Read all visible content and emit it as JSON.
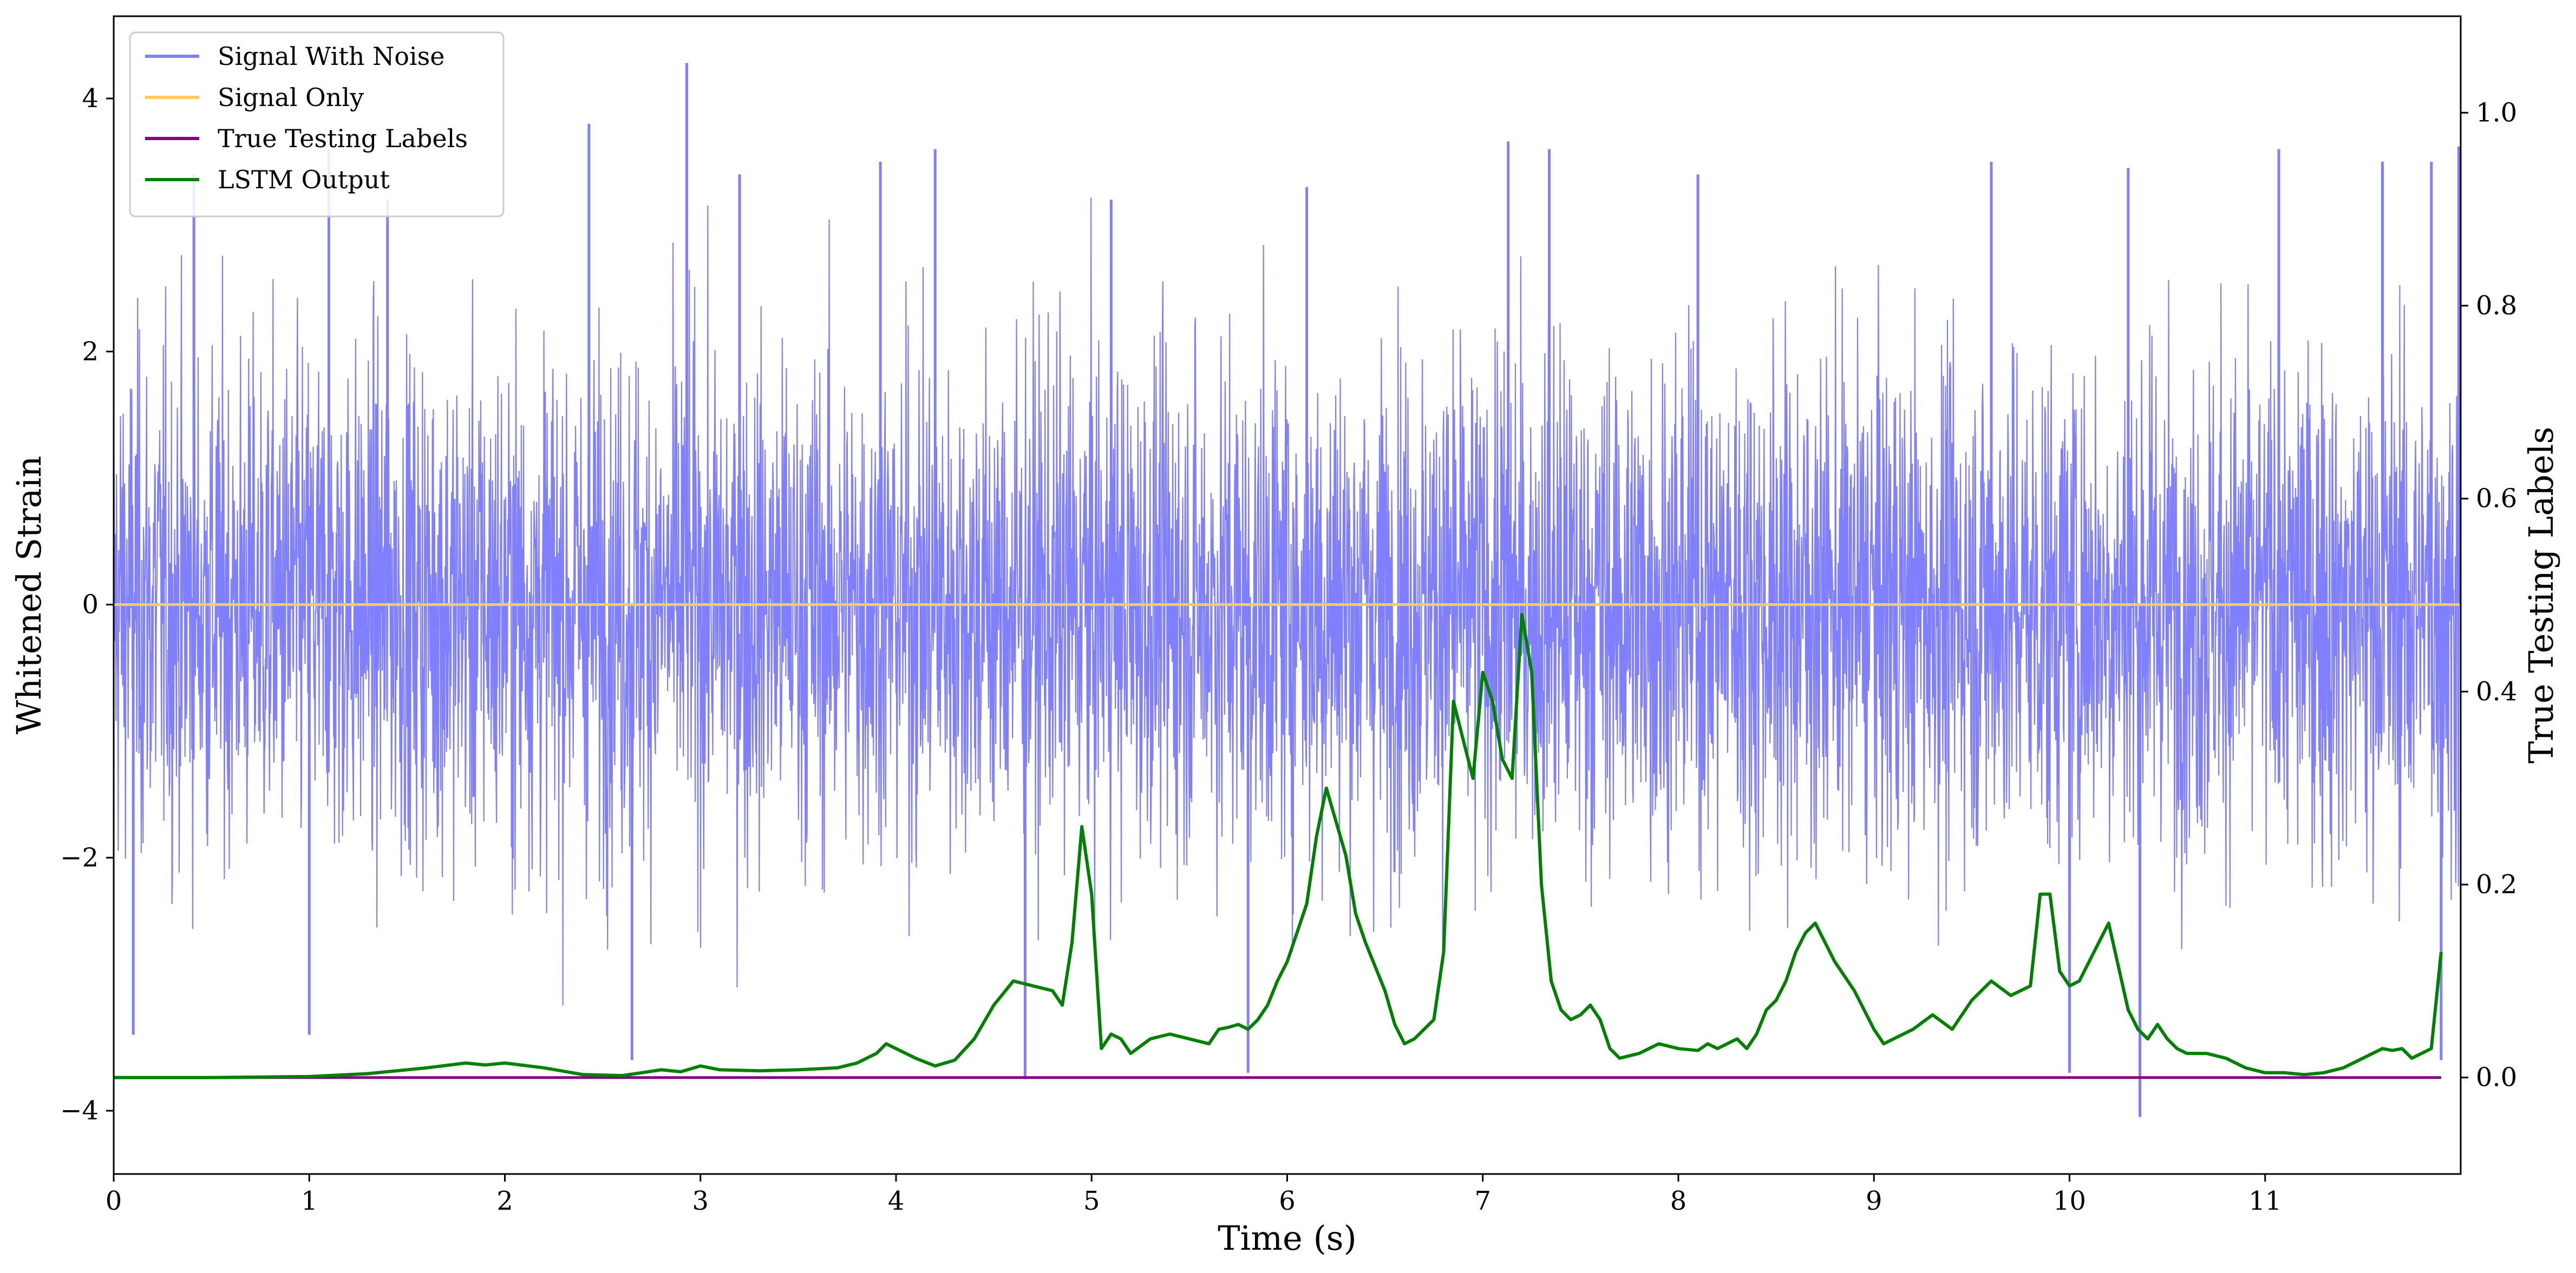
{
  "chart_data": {
    "type": "line",
    "title": "",
    "xlabel": "Time (s)",
    "ylabel_left": "Whitened Strain",
    "ylabel_right": "True Testing Labels",
    "xlim": [
      0,
      12
    ],
    "ylim_left": [
      -4.5,
      4.65
    ],
    "ylim_right": [
      -0.1,
      1.1
    ],
    "x_ticks": [
      0,
      1,
      2,
      3,
      4,
      5,
      6,
      7,
      8,
      9,
      10,
      11
    ],
    "x_tick_labels": [
      "0",
      "1",
      "2",
      "3",
      "4",
      "5",
      "6",
      "7",
      "8",
      "9",
      "10",
      "11"
    ],
    "y_left_ticks": [
      -4,
      -2,
      0,
      2,
      4
    ],
    "y_left_tick_labels": [
      "−4",
      "−2",
      "0",
      "2",
      "4"
    ],
    "y_right_ticks": [
      0.0,
      0.2,
      0.4,
      0.6,
      0.8,
      1.0
    ],
    "y_right_tick_labels": [
      "0.0",
      "0.2",
      "0.4",
      "0.6",
      "0.8",
      "1.0"
    ],
    "grid": false,
    "legend_position": "upper-left",
    "legend": [
      "Signal With Noise",
      "Signal Only",
      "True Testing Labels",
      "LSTM Output"
    ],
    "series": [
      {
        "name": "Signal With Noise",
        "axis": "left",
        "color": "#7f7fff",
        "description_values": "dense noise band, typical range -2.5 to 2.5, spikes up to 4.3 and down to -4.05",
        "noise_envelope": {
          "typical_min": -2.5,
          "typical_max": 2.5,
          "peak_max": 4.3,
          "peak_min": -4.05
        },
        "spikes": [
          {
            "x": 0.41,
            "y": 3.4
          },
          {
            "x": 1.1,
            "y": 3.6
          },
          {
            "x": 1.4,
            "y": 3.2
          },
          {
            "x": 2.43,
            "y": 3.8
          },
          {
            "x": 2.93,
            "y": 4.28
          },
          {
            "x": 3.2,
            "y": 3.4
          },
          {
            "x": 3.92,
            "y": 3.5
          },
          {
            "x": 4.2,
            "y": 3.6
          },
          {
            "x": 4.66,
            "y": -3.75
          },
          {
            "x": 5.1,
            "y": 3.2
          },
          {
            "x": 5.8,
            "y": -3.7
          },
          {
            "x": 6.1,
            "y": 3.3
          },
          {
            "x": 7.13,
            "y": 3.66
          },
          {
            "x": 7.34,
            "y": 3.6
          },
          {
            "x": 8.1,
            "y": 3.4
          },
          {
            "x": 9.6,
            "y": 3.5
          },
          {
            "x": 10.3,
            "y": 3.45
          },
          {
            "x": 10.36,
            "y": -4.05
          },
          {
            "x": 11.07,
            "y": 3.6
          },
          {
            "x": 11.6,
            "y": 3.5
          },
          {
            "x": 11.85,
            "y": 3.5
          },
          {
            "x": 11.9,
            "y": -3.6
          },
          {
            "x": 11.99,
            "y": 3.62
          },
          {
            "x": 2.65,
            "y": -3.6
          },
          {
            "x": 0.1,
            "y": -3.4
          },
          {
            "x": 1.0,
            "y": -3.4
          },
          {
            "x": 10.0,
            "y": -3.7
          }
        ]
      },
      {
        "name": "Signal Only",
        "axis": "left",
        "color": "#ffc966",
        "x": [
          0,
          12
        ],
        "y": [
          0,
          0
        ]
      },
      {
        "name": "True Testing Labels",
        "axis": "right",
        "color": "#800080",
        "x": [
          0,
          11.9
        ],
        "y": [
          0,
          0
        ]
      },
      {
        "name": "LSTM Output",
        "axis": "right",
        "color": "#008000",
        "x": [
          0,
          0.5,
          1.0,
          1.3,
          1.6,
          1.8,
          1.9,
          2.0,
          2.2,
          2.4,
          2.6,
          2.7,
          2.8,
          2.9,
          3.0,
          3.1,
          3.3,
          3.5,
          3.7,
          3.8,
          3.9,
          3.95,
          4.05,
          4.1,
          4.2,
          4.3,
          4.4,
          4.5,
          4.6,
          4.7,
          4.8,
          4.85,
          4.9,
          4.95,
          5.0,
          5.05,
          5.1,
          5.15,
          5.2,
          5.3,
          5.4,
          5.5,
          5.6,
          5.65,
          5.7,
          5.75,
          5.8,
          5.85,
          5.9,
          5.95,
          6.0,
          6.1,
          6.15,
          6.2,
          6.3,
          6.35,
          6.4,
          6.5,
          6.55,
          6.6,
          6.65,
          6.7,
          6.75,
          6.8,
          6.85,
          6.9,
          6.95,
          7.0,
          7.05,
          7.1,
          7.15,
          7.2,
          7.25,
          7.3,
          7.35,
          7.4,
          7.45,
          7.5,
          7.55,
          7.6,
          7.65,
          7.7,
          7.8,
          7.9,
          8.0,
          8.1,
          8.15,
          8.2,
          8.3,
          8.35,
          8.4,
          8.45,
          8.5,
          8.55,
          8.6,
          8.65,
          8.7,
          8.8,
          8.9,
          9.0,
          9.05,
          9.1,
          9.2,
          9.3,
          9.4,
          9.5,
          9.6,
          9.7,
          9.8,
          9.85,
          9.9,
          9.95,
          10.0,
          10.05,
          10.1,
          10.15,
          10.2,
          10.3,
          10.35,
          10.4,
          10.45,
          10.5,
          10.55,
          10.6,
          10.7,
          10.8,
          10.9,
          11.0,
          11.1,
          11.2,
          11.3,
          11.4,
          11.5,
          11.6,
          11.65,
          11.7,
          11.75,
          11.8,
          11.85,
          11.9
        ],
        "y": [
          0.0,
          0.0,
          0.001,
          0.004,
          0.01,
          0.015,
          0.013,
          0.015,
          0.01,
          0.003,
          0.002,
          0.005,
          0.008,
          0.006,
          0.012,
          0.008,
          0.007,
          0.008,
          0.01,
          0.015,
          0.025,
          0.035,
          0.025,
          0.02,
          0.012,
          0.018,
          0.04,
          0.075,
          0.1,
          0.095,
          0.09,
          0.075,
          0.14,
          0.26,
          0.19,
          0.03,
          0.045,
          0.04,
          0.025,
          0.04,
          0.045,
          0.04,
          0.035,
          0.05,
          0.052,
          0.055,
          0.05,
          0.06,
          0.075,
          0.1,
          0.12,
          0.18,
          0.25,
          0.3,
          0.23,
          0.17,
          0.14,
          0.09,
          0.055,
          0.035,
          0.04,
          0.05,
          0.06,
          0.13,
          0.39,
          0.35,
          0.31,
          0.42,
          0.39,
          0.33,
          0.31,
          0.48,
          0.42,
          0.2,
          0.1,
          0.07,
          0.06,
          0.065,
          0.075,
          0.06,
          0.03,
          0.02,
          0.025,
          0.035,
          0.03,
          0.028,
          0.035,
          0.03,
          0.04,
          0.03,
          0.045,
          0.07,
          0.08,
          0.1,
          0.13,
          0.15,
          0.16,
          0.12,
          0.09,
          0.05,
          0.035,
          0.04,
          0.05,
          0.065,
          0.05,
          0.08,
          0.1,
          0.085,
          0.095,
          0.19,
          0.19,
          0.11,
          0.095,
          0.1,
          0.12,
          0.14,
          0.16,
          0.07,
          0.05,
          0.04,
          0.055,
          0.04,
          0.03,
          0.025,
          0.025,
          0.02,
          0.01,
          0.005,
          0.005,
          0.003,
          0.005,
          0.01,
          0.02,
          0.03,
          0.028,
          0.03,
          0.02,
          0.025,
          0.03,
          0.13
        ]
      }
    ]
  }
}
